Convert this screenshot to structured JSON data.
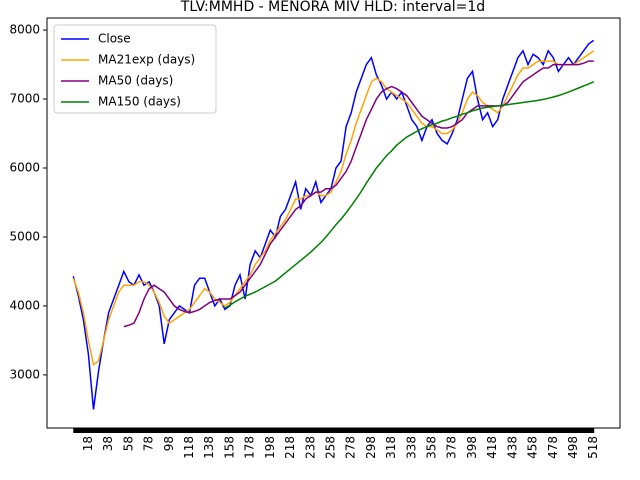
{
  "chart_data": {
    "type": "line",
    "title": "TLV:MMHD - MENORA MIV HLD: interval=1d",
    "x": [
      3,
      8,
      13,
      18,
      23,
      28,
      33,
      38,
      43,
      48,
      53,
      58,
      63,
      68,
      73,
      78,
      83,
      88,
      93,
      98,
      103,
      108,
      113,
      118,
      123,
      128,
      133,
      138,
      143,
      148,
      153,
      158,
      163,
      168,
      173,
      178,
      183,
      188,
      193,
      198,
      203,
      208,
      213,
      218,
      223,
      228,
      233,
      238,
      243,
      248,
      253,
      258,
      263,
      268,
      273,
      278,
      283,
      288,
      293,
      298,
      303,
      308,
      313,
      318,
      323,
      328,
      333,
      338,
      343,
      348,
      353,
      358,
      363,
      368,
      373,
      378,
      383,
      388,
      393,
      398,
      403,
      408,
      413,
      418,
      423,
      428,
      433,
      438,
      443,
      448,
      453,
      458,
      463,
      468,
      473,
      478,
      483,
      488,
      493,
      498,
      503,
      508,
      513,
      518
    ],
    "series": [
      {
        "name": "Close",
        "color": "#0000ff",
        "values": [
          4430,
          4150,
          3800,
          3300,
          2500,
          3050,
          3500,
          3900,
          4100,
          4300,
          4500,
          4350,
          4300,
          4450,
          4300,
          4350,
          4200,
          4000,
          3450,
          3800,
          3900,
          4000,
          3950,
          3900,
          4300,
          4400,
          4400,
          4200,
          4000,
          4100,
          3950,
          4000,
          4300,
          4450,
          4100,
          4600,
          4800,
          4700,
          4900,
          5100,
          5000,
          5300,
          5400,
          5600,
          5800,
          5400,
          5700,
          5600,
          5800,
          5500,
          5600,
          5700,
          6000,
          6100,
          6600,
          6800,
          7100,
          7300,
          7500,
          7600,
          7350,
          7200,
          7000,
          7100,
          7000,
          7100,
          6900,
          6700,
          6600,
          6400,
          6600,
          6700,
          6500,
          6400,
          6350,
          6500,
          6700,
          7000,
          7300,
          7400,
          7000,
          6700,
          6800,
          6600,
          6700,
          7000,
          7200,
          7400,
          7600,
          7700,
          7500,
          7650,
          7600,
          7500,
          7700,
          7600,
          7400,
          7500,
          7600,
          7500,
          7600,
          7700,
          7800,
          7850
        ]
      },
      {
        "name": "MA21exp (days)",
        "color": "#ffa500",
        "values": [
          4400,
          4200,
          3900,
          3500,
          3150,
          3200,
          3500,
          3800,
          4000,
          4200,
          4300,
          4300,
          4300,
          4350,
          4350,
          4300,
          4200,
          4050,
          3850,
          3750,
          3800,
          3850,
          3900,
          3950,
          4050,
          4150,
          4250,
          4200,
          4100,
          4050,
          4000,
          4050,
          4150,
          4250,
          4350,
          4450,
          4600,
          4700,
          4800,
          4950,
          5050,
          5150,
          5250,
          5400,
          5550,
          5550,
          5600,
          5600,
          5650,
          5600,
          5600,
          5650,
          5800,
          5950,
          6200,
          6400,
          6650,
          6850,
          7050,
          7250,
          7300,
          7250,
          7150,
          7100,
          7050,
          7000,
          6950,
          6850,
          6750,
          6650,
          6600,
          6600,
          6550,
          6500,
          6500,
          6550,
          6650,
          6800,
          7000,
          7100,
          7050,
          6950,
          6900,
          6850,
          6800,
          6900,
          7050,
          7200,
          7350,
          7450,
          7450,
          7500,
          7550,
          7550,
          7550,
          7550,
          7500,
          7500,
          7500,
          7500,
          7550,
          7600,
          7650,
          7700
        ]
      },
      {
        "name": "MA50 (days)",
        "color": "#800080",
        "values": [
          null,
          null,
          null,
          null,
          null,
          null,
          null,
          null,
          null,
          null,
          3700,
          3720,
          3750,
          3900,
          4100,
          4250,
          4300,
          4250,
          4200,
          4100,
          4000,
          3950,
          3920,
          3900,
          3920,
          3950,
          4000,
          4050,
          4080,
          4100,
          4100,
          4100,
          4150,
          4200,
          4300,
          4400,
          4500,
          4600,
          4750,
          4900,
          5000,
          5100,
          5200,
          5300,
          5400,
          5450,
          5550,
          5600,
          5650,
          5650,
          5700,
          5700,
          5750,
          5850,
          5950,
          6100,
          6300,
          6500,
          6700,
          6850,
          7000,
          7100,
          7150,
          7180,
          7150,
          7100,
          7050,
          6950,
          6850,
          6750,
          6700,
          6650,
          6600,
          6580,
          6580,
          6600,
          6650,
          6700,
          6800,
          6850,
          6900,
          6900,
          6900,
          6900,
          6900,
          6900,
          6950,
          7050,
          7150,
          7250,
          7300,
          7350,
          7400,
          7450,
          7450,
          7500,
          7500,
          7500,
          7500,
          7500,
          7500,
          7520,
          7550,
          7550
        ]
      },
      {
        "name": "MA150 (days)",
        "color": "#008000",
        "values": [
          null,
          null,
          null,
          null,
          null,
          null,
          null,
          null,
          null,
          null,
          null,
          null,
          null,
          null,
          null,
          null,
          null,
          null,
          null,
          null,
          null,
          null,
          null,
          null,
          null,
          null,
          null,
          null,
          null,
          null,
          3970,
          4010,
          4060,
          4100,
          4140,
          4170,
          4200,
          4240,
          4280,
          4320,
          4360,
          4420,
          4480,
          4540,
          4600,
          4660,
          4720,
          4780,
          4850,
          4920,
          5000,
          5090,
          5180,
          5260,
          5350,
          5450,
          5550,
          5660,
          5780,
          5890,
          6000,
          6090,
          6180,
          6250,
          6330,
          6390,
          6450,
          6490,
          6530,
          6570,
          6600,
          6630,
          6650,
          6680,
          6700,
          6730,
          6750,
          6780,
          6800,
          6830,
          6850,
          6870,
          6880,
          6890,
          6900,
          6910,
          6920,
          6930,
          6940,
          6950,
          6960,
          6970,
          6980,
          6995,
          7010,
          7030,
          7050,
          7075,
          7100,
          7130,
          7160,
          7190,
          7220,
          7250
        ]
      }
    ],
    "xlim": [
      -23,
      544
    ],
    "ylim": [
      2230,
      8175
    ],
    "xticks": [
      18,
      38,
      58,
      78,
      98,
      118,
      138,
      158,
      178,
      198,
      218,
      238,
      258,
      278,
      298,
      318,
      338,
      358,
      378,
      398,
      418,
      438,
      458,
      478,
      498,
      518
    ],
    "yticks": [
      3000,
      4000,
      5000,
      6000,
      7000,
      8000
    ],
    "legend": "upper left"
  }
}
